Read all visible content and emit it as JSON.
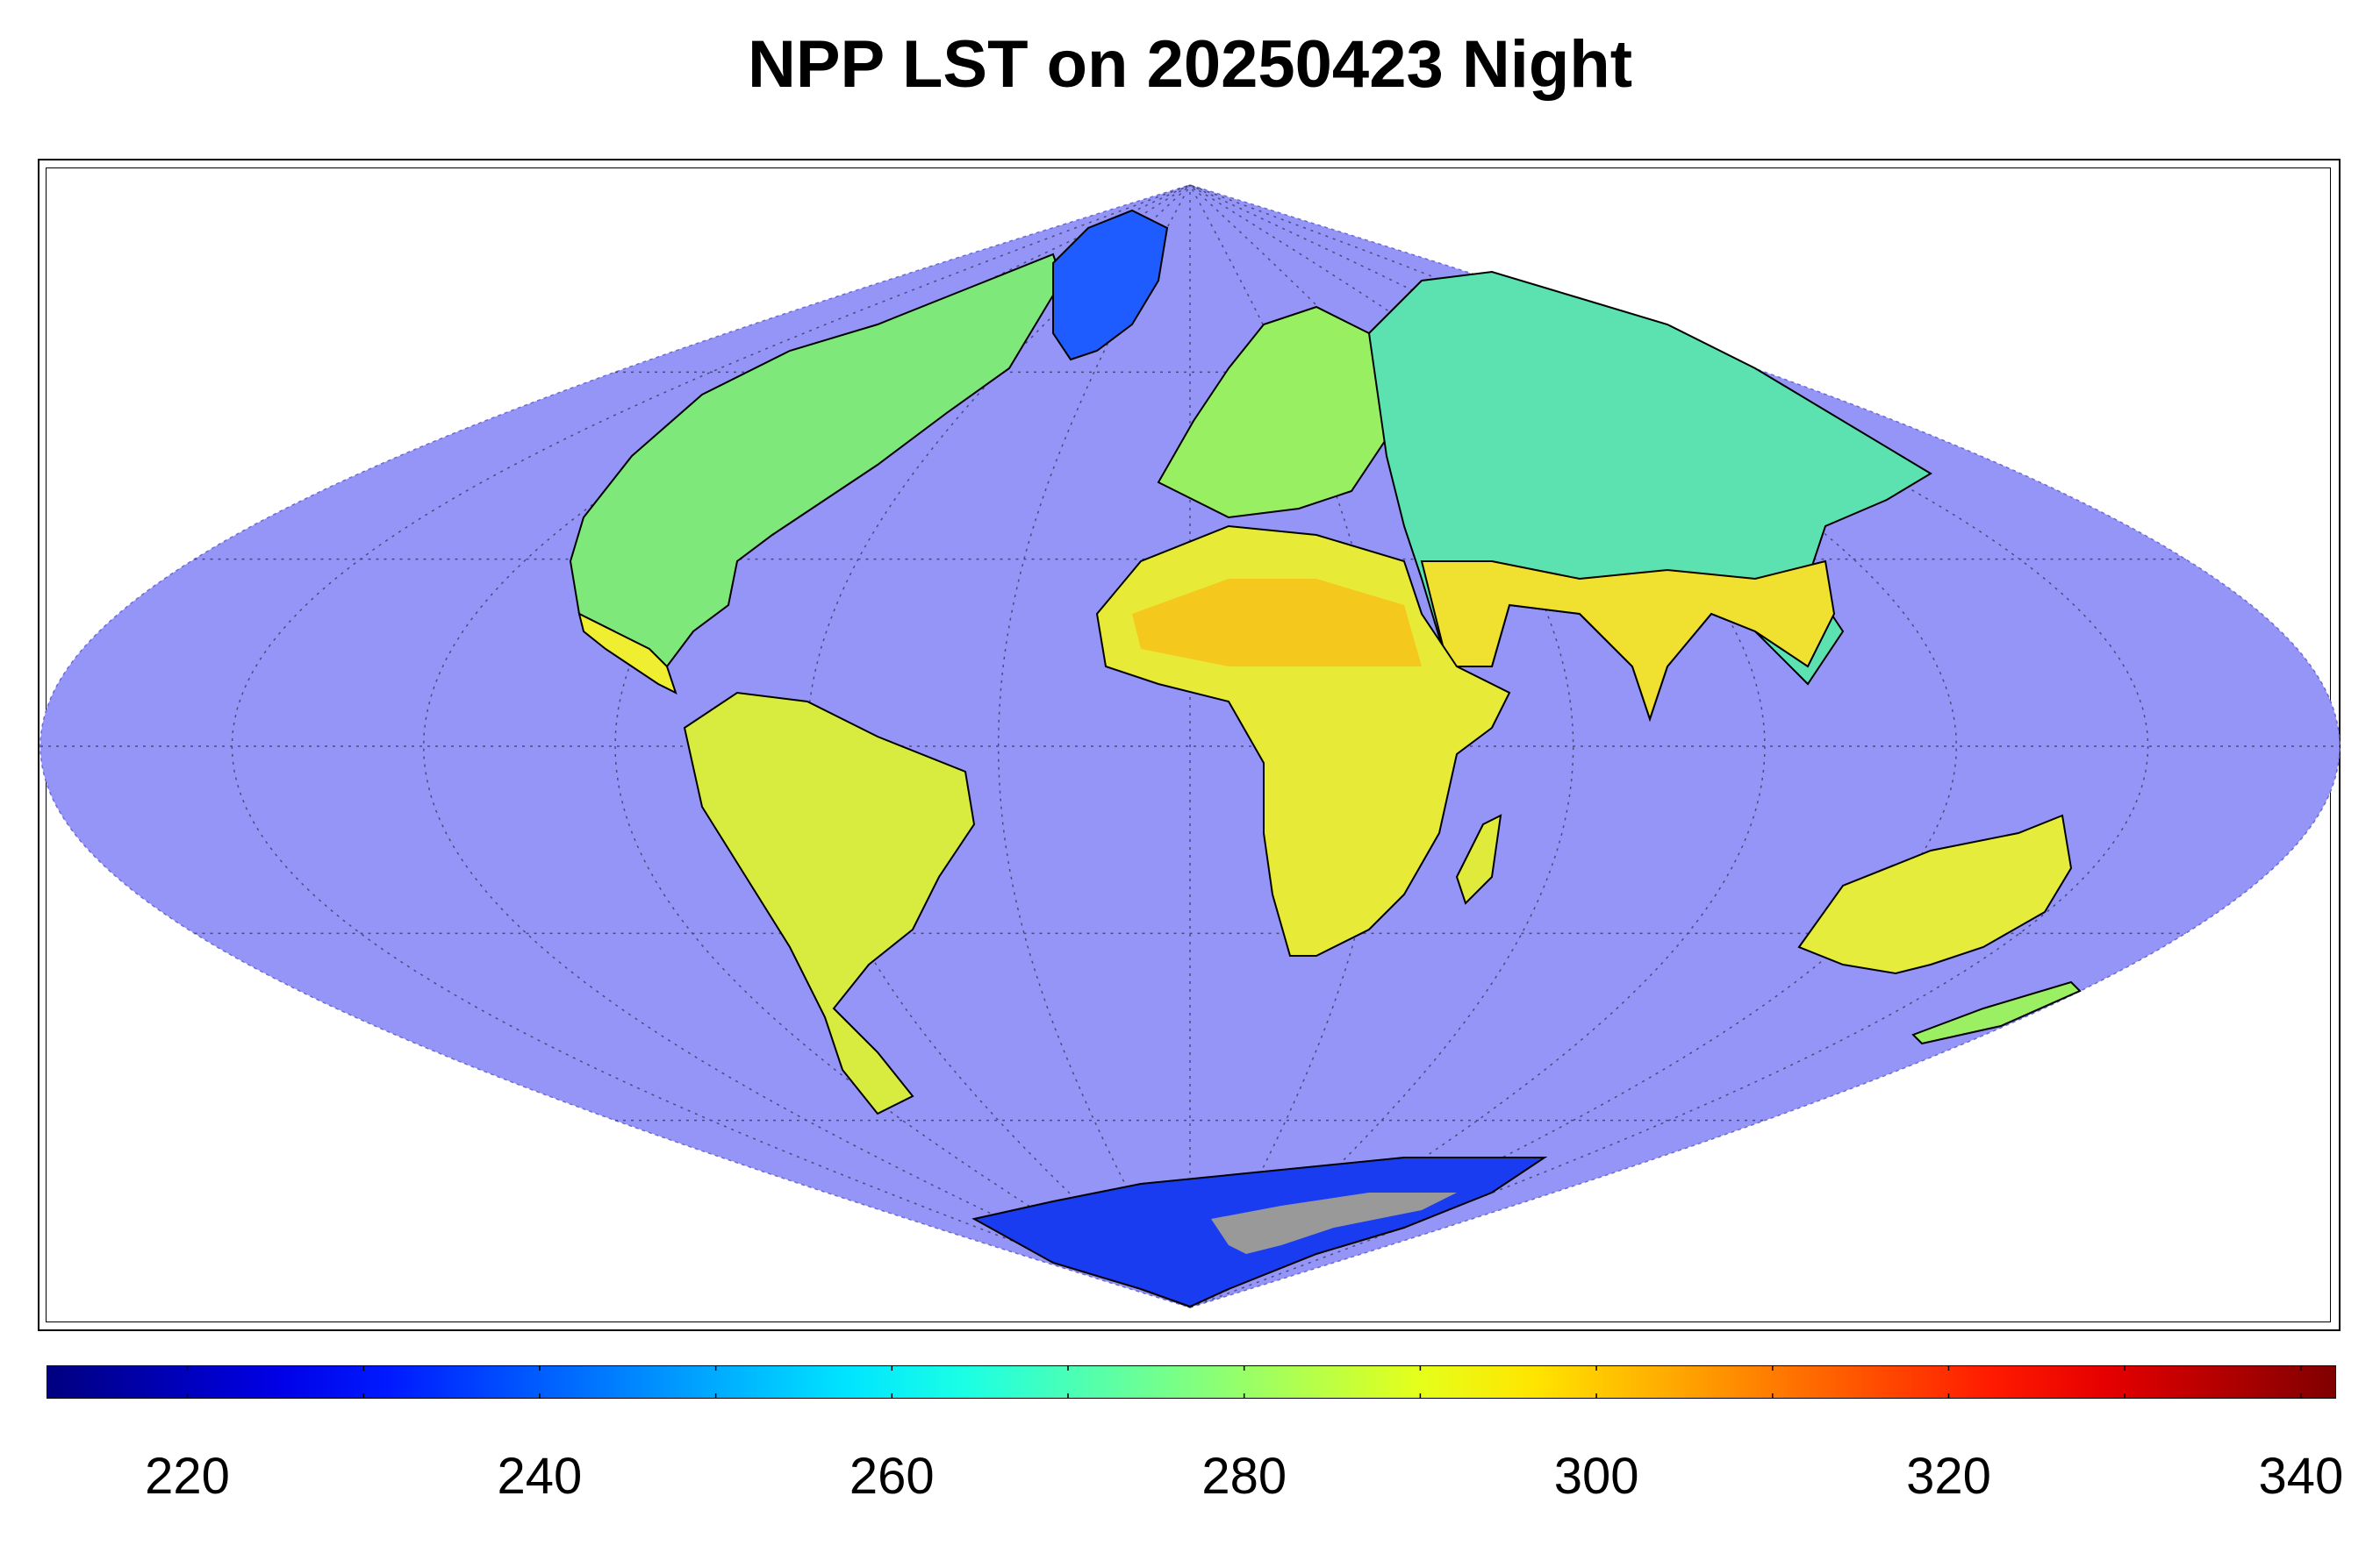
{
  "title": "NPP LST on 20250423 Night",
  "map": {
    "projection": "sinusoidal",
    "ocean_color": "#9595f7",
    "nodata_color": "#999999",
    "coastline_color": "#000000",
    "graticule": {
      "lon_step_deg": 30,
      "lat_step_deg": 30,
      "style": "dotted"
    }
  },
  "colorbar": {
    "min": 212,
    "max": 342,
    "colormap": "jet",
    "ticks": [
      "220",
      "240",
      "260",
      "280",
      "300",
      "320",
      "340"
    ],
    "tick_values": [
      220,
      240,
      260,
      280,
      300,
      320,
      340
    ]
  }
}
